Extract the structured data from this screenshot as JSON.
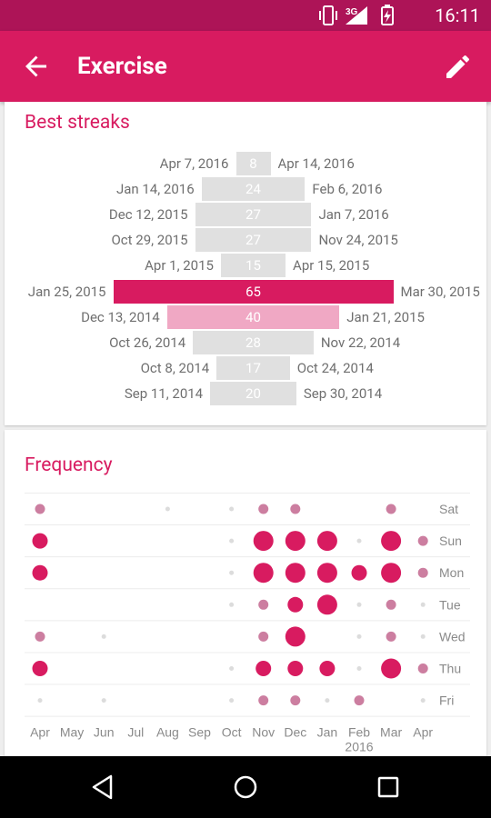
{
  "status_bar": {
    "time": "16:11",
    "network": "3G"
  },
  "app_bar": {
    "title": "Exercise"
  },
  "best_streaks": {
    "title": "Best streaks",
    "streaks": [
      {
        "start": "Apr 7, 2016",
        "end": "Apr 14, 2016",
        "length": 8,
        "highlight": "none"
      },
      {
        "start": "Jan 14, 2016",
        "end": "Feb 6, 2016",
        "length": 24,
        "highlight": "none"
      },
      {
        "start": "Dec 12, 2015",
        "end": "Jan 7, 2016",
        "length": 27,
        "highlight": "none"
      },
      {
        "start": "Oct 29, 2015",
        "end": "Nov 24, 2015",
        "length": 27,
        "highlight": "none"
      },
      {
        "start": "Apr 1, 2015",
        "end": "Apr 15, 2015",
        "length": 15,
        "highlight": "none"
      },
      {
        "start": "Jan 25, 2015",
        "end": "Mar 30, 2015",
        "length": 65,
        "highlight": "best"
      },
      {
        "start": "Dec 13, 2014",
        "end": "Jan 21, 2015",
        "length": 40,
        "highlight": "second"
      },
      {
        "start": "Oct 26, 2014",
        "end": "Nov 22, 2014",
        "length": 28,
        "highlight": "none"
      },
      {
        "start": "Oct 8, 2014",
        "end": "Oct 24, 2014",
        "length": 17,
        "highlight": "none"
      },
      {
        "start": "Sep 11, 2014",
        "end": "Sep 30, 2014",
        "length": 20,
        "highlight": "none"
      }
    ]
  },
  "frequency": {
    "title": "Frequency",
    "months": [
      "Apr",
      "May",
      "Jun",
      "Jul",
      "Aug",
      "Sep",
      "Oct",
      "Nov",
      "Dec",
      "Jan",
      "Feb",
      "Mar",
      "Apr"
    ],
    "year_label": {
      "month_index": 10,
      "text": "2016"
    },
    "days": [
      "Sat",
      "Sun",
      "Mon",
      "Tue",
      "Wed",
      "Thu",
      "Fri"
    ],
    "levels": [
      [
        2,
        0,
        0,
        0,
        1,
        0,
        1,
        2,
        2,
        0,
        0,
        2,
        0
      ],
      [
        3,
        0,
        0,
        0,
        0,
        0,
        1,
        4,
        4,
        4,
        1,
        4,
        2
      ],
      [
        3,
        0,
        0,
        0,
        0,
        0,
        1,
        4,
        4,
        4,
        3,
        4,
        2
      ],
      [
        0,
        0,
        0,
        0,
        0,
        0,
        1,
        2,
        3,
        4,
        1,
        2,
        1
      ],
      [
        2,
        0,
        1,
        0,
        0,
        0,
        0,
        2,
        4,
        0,
        1,
        2,
        1
      ],
      [
        3,
        0,
        0,
        0,
        0,
        0,
        1,
        3,
        3,
        3,
        1,
        4,
        2
      ],
      [
        1,
        0,
        1,
        0,
        0,
        0,
        1,
        2,
        2,
        1,
        2,
        0,
        1
      ]
    ]
  },
  "colors": {
    "primary": "#d81b60",
    "primary_dark": "#ad1457",
    "second_bar": "#f0a8c4",
    "neutral_bar": "#e0e0e0",
    "dot_light": "#cc7ea0",
    "dot_faint": "#dcdcdc"
  },
  "icons": {
    "back": "arrow-back-icon",
    "edit": "pencil-edit-icon",
    "nav_back": "triangle-back-icon",
    "nav_home": "circle-home-icon",
    "nav_recents": "square-recents-icon"
  }
}
